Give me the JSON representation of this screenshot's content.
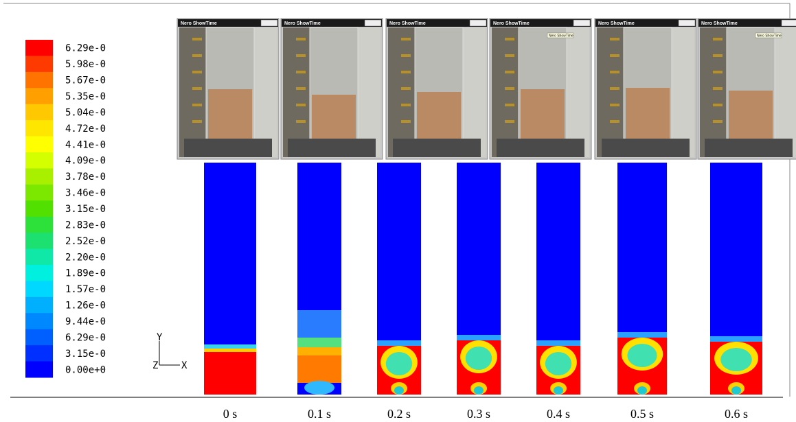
{
  "legend": {
    "labels": [
      "6.29e-0",
      "5.98e-0",
      "5.67e-0",
      "5.35e-0",
      "5.04e-0",
      "4.72e-0",
      "4.41e-0",
      "4.09e-0",
      "3.78e-0",
      "3.46e-0",
      "3.15e-0",
      "2.83e-0",
      "2.52e-0",
      "2.20e-0",
      "1.89e-0",
      "1.57e-0",
      "1.26e-0",
      "9.44e-0",
      "6.29e-0",
      "3.15e-0",
      "0.00e+0"
    ],
    "colors": [
      "#ff0000",
      "#ff3a00",
      "#ff7400",
      "#ffa000",
      "#ffc800",
      "#ffe600",
      "#ffff00",
      "#d4ff00",
      "#a8f000",
      "#7ce800",
      "#52e000",
      "#2ee03a",
      "#1ce070",
      "#10e8a8",
      "#00f0e0",
      "#00d8ff",
      "#00b0ff",
      "#0088ff",
      "#0060ff",
      "#0030ff",
      "#0000ff"
    ]
  },
  "photos": [
    {
      "title": "Nero ShowTime"
    },
    {
      "title": "Nero ShowTime"
    },
    {
      "title": "Nero ShowTime"
    },
    {
      "title": "Nero ShowTime",
      "tooltip": "Nero ShowTime"
    },
    {
      "title": "Nero ShowTime"
    },
    {
      "title": "Nero ShowTime",
      "tooltip": "Nero ShowTime"
    }
  ],
  "axes": {
    "y": "Y",
    "z": "Z",
    "x": "X"
  },
  "times": [
    "0 s",
    "0.1 s",
    "0.2 s",
    "0.3 s",
    "0.4 s",
    "0.5 s",
    "0.6 s"
  ]
}
